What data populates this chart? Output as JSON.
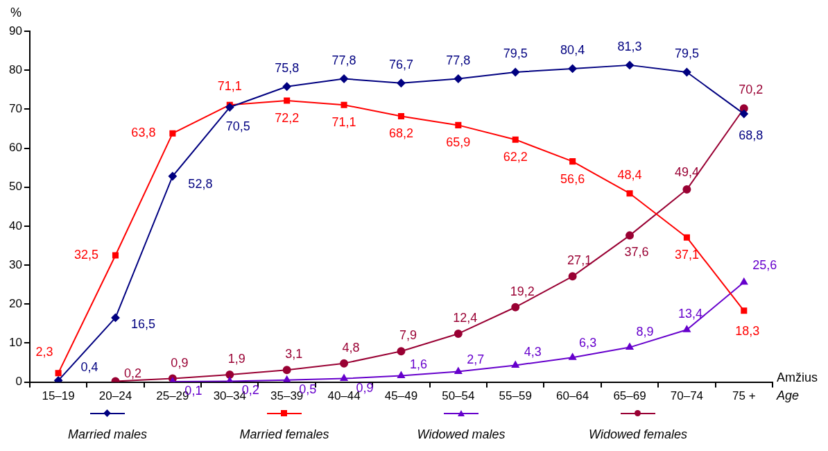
{
  "chart_data": {
    "type": "line",
    "ylabel": "%",
    "xlabel": "Amžius\nAge",
    "categories": [
      "15–19",
      "20–24",
      "25–29",
      "30–34",
      "35–39",
      "40–44",
      "45–49",
      "50–54",
      "55–59",
      "60–64",
      "65–69",
      "70–74",
      "75 +"
    ],
    "ylim": [
      0,
      90
    ],
    "yticks": [
      0,
      10,
      20,
      30,
      40,
      50,
      60,
      70,
      80,
      90
    ],
    "grid": false,
    "legend": "bottom",
    "series": [
      {
        "name": "Married males",
        "color": "#000080",
        "marker": "diamond",
        "values": [
          0.4,
          16.5,
          52.8,
          70.5,
          75.8,
          77.8,
          76.7,
          77.8,
          79.5,
          80.4,
          81.3,
          79.5,
          68.8
        ],
        "value_labels": [
          "0,4",
          "16,5",
          "52,8",
          "70,5",
          "75,8",
          "77,8",
          "76,7",
          "77,8",
          "79,5",
          "80,4",
          "81,3",
          "79,5",
          "68,8"
        ]
      },
      {
        "name": "Married females",
        "color": "#ff0000",
        "marker": "square",
        "values": [
          2.3,
          32.5,
          63.8,
          71.1,
          72.2,
          71.1,
          68.2,
          65.9,
          62.2,
          56.6,
          48.4,
          37.1,
          18.3
        ],
        "value_labels": [
          "2,3",
          "32,5",
          "63,8",
          "71,1",
          "72,2",
          "71,1",
          "68,2",
          "65,9",
          "62,2",
          "56,6",
          "48,4",
          "37,1",
          "18,3"
        ]
      },
      {
        "name": "Widowed males",
        "color": "#6600cc",
        "marker": "triangle",
        "values": [
          null,
          null,
          0.1,
          0.2,
          0.5,
          0.9,
          1.6,
          2.7,
          4.3,
          6.3,
          8.9,
          13.4,
          25.6
        ],
        "value_labels": [
          null,
          null,
          "0,1",
          "0,2",
          "0,5",
          "0,9",
          "1,6",
          "2,7",
          "4,3",
          "6,3",
          "8,9",
          "13,4",
          "25,6"
        ]
      },
      {
        "name": "Widowed   females",
        "color": "#990033",
        "marker": "circle",
        "values": [
          null,
          0.2,
          0.9,
          1.9,
          3.1,
          4.8,
          7.9,
          12.4,
          19.2,
          27.1,
          37.6,
          49.4,
          70.2
        ],
        "value_labels": [
          null,
          "0,2",
          "0,9",
          "1,9",
          "3,1",
          "4,8",
          "7,9",
          "12,4",
          "19,2",
          "27,1",
          "37,6",
          "49,4",
          "70,2"
        ]
      }
    ]
  }
}
